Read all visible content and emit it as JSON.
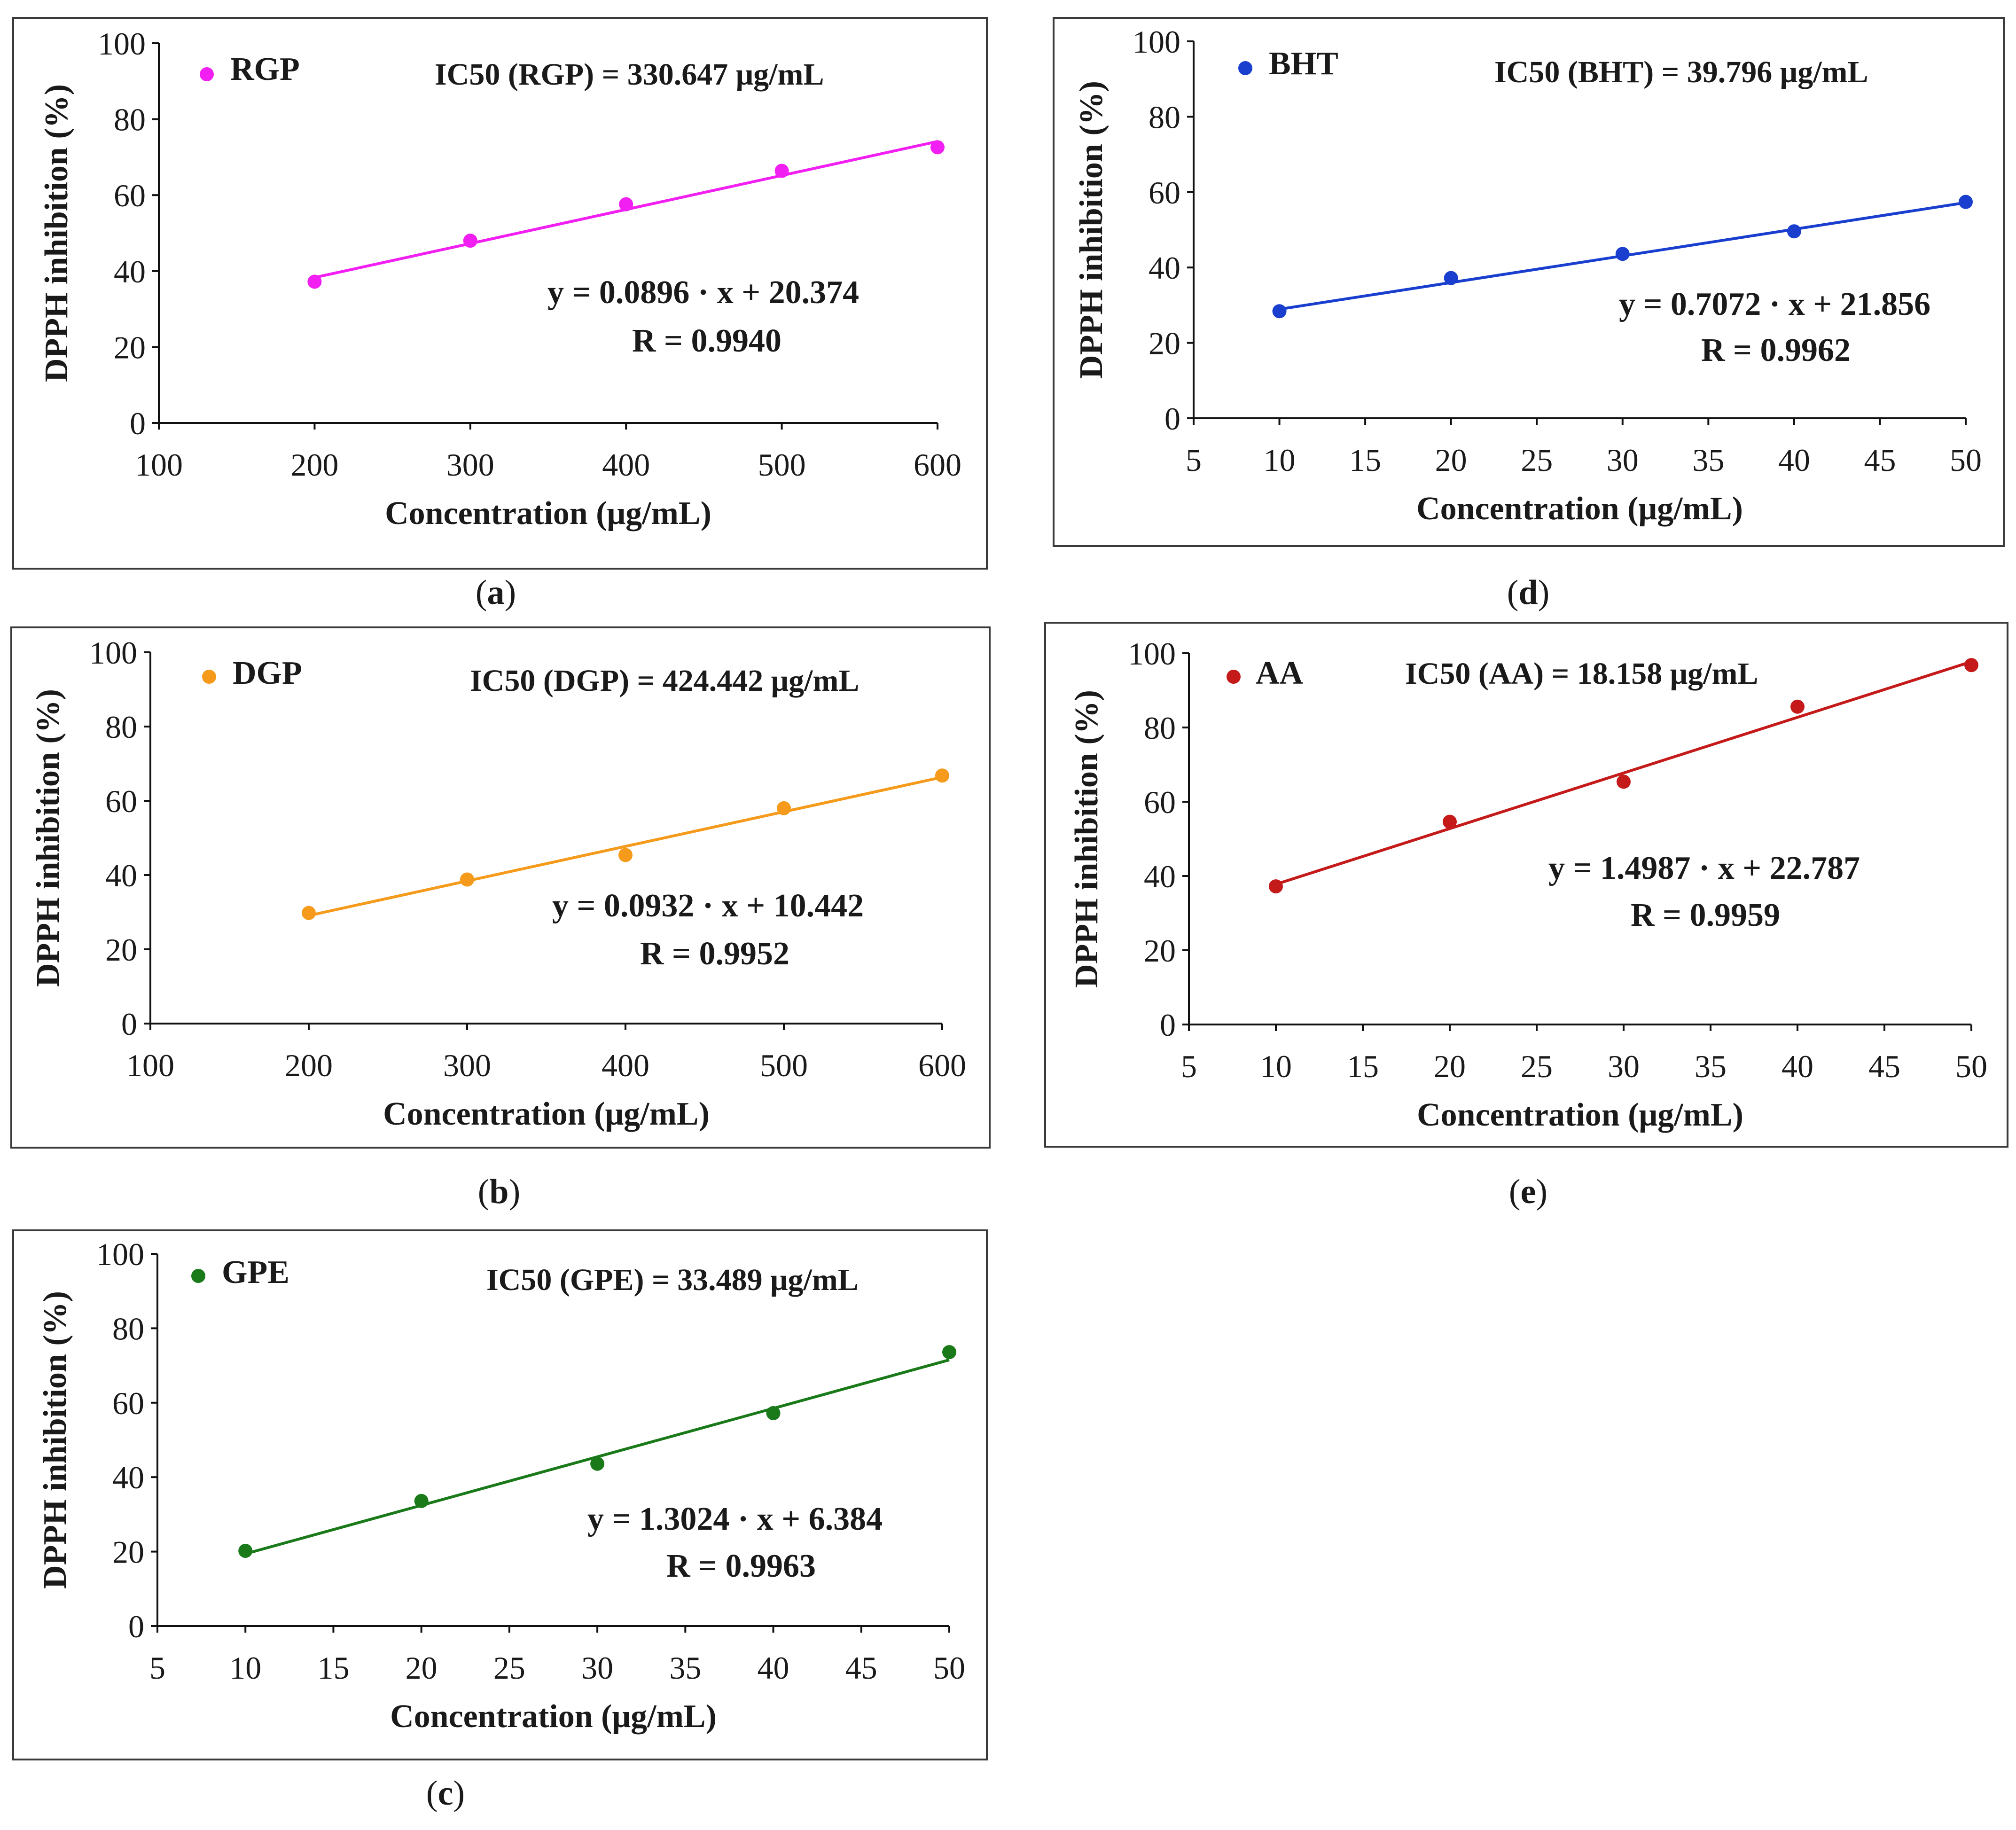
{
  "chart_data": [
    {
      "id": "a",
      "type": "scatter",
      "caption": "a",
      "series_name": "RGP",
      "color": "#f21ff2",
      "x": [
        200,
        300,
        400,
        500,
        600
      ],
      "y": [
        37.2,
        48.0,
        57.6,
        66.4,
        72.6
      ],
      "fit": {
        "slope": 0.0896,
        "intercept": 20.374
      },
      "xlim": [
        100,
        600
      ],
      "xticks": [
        100,
        200,
        300,
        400,
        500,
        600
      ],
      "ylim": [
        0,
        100
      ],
      "yticks": [
        0,
        20,
        40,
        60,
        80,
        100
      ],
      "xlabel": "Concentration (μg/mL)",
      "ylabel": "DPPH inhibition (%)",
      "ic50_text": "IC50 (RGP) = 330.647 μg/mL",
      "equation": "y = 0.0896 · x + 20.374",
      "r_text": "R = 0.9940"
    },
    {
      "id": "d",
      "type": "scatter",
      "caption": "d",
      "series_name": "BHT",
      "color": "#1a3fcf",
      "x": [
        10,
        20,
        30,
        40,
        50
      ],
      "y": [
        28.4,
        37.2,
        43.6,
        49.6,
        57.4
      ],
      "fit": {
        "slope": 0.7072,
        "intercept": 21.856
      },
      "xlim": [
        5,
        50
      ],
      "xticks": [
        5,
        10,
        15,
        20,
        25,
        30,
        35,
        40,
        45,
        50
      ],
      "ylim": [
        0,
        100
      ],
      "yticks": [
        0,
        20,
        40,
        60,
        80,
        100
      ],
      "xlabel": "Concentration (μg/mL)",
      "ylabel": "DPPH inhibition (%)",
      "ic50_text": "IC50 (BHT) = 39.796 μg/mL",
      "equation": "y = 0.7072 · x + 21.856",
      "r_text": "R = 0.9962"
    },
    {
      "id": "b",
      "type": "scatter",
      "caption": "b",
      "series_name": "DGP",
      "color": "#f59a1a",
      "x": [
        200,
        300,
        400,
        500,
        600
      ],
      "y": [
        29.8,
        38.8,
        45.4,
        58.0,
        66.8
      ],
      "fit": {
        "slope": 0.0932,
        "intercept": 10.442
      },
      "xlim": [
        100,
        600
      ],
      "xticks": [
        100,
        200,
        300,
        400,
        500,
        600
      ],
      "ylim": [
        0,
        100
      ],
      "yticks": [
        0,
        20,
        40,
        60,
        80,
        100
      ],
      "xlabel": "Concentration (μg/mL)",
      "ylabel": "DPPH inhibition (%)",
      "ic50_text": "IC50 (DGP) = 424.442 μg/mL",
      "equation": "y = 0.0932 · x + 10.442",
      "r_text": "R = 0.9952"
    },
    {
      "id": "e",
      "type": "scatter",
      "caption": "e",
      "series_name": "AA",
      "color": "#c41a1a",
      "x": [
        10,
        20,
        30,
        40,
        50
      ],
      "y": [
        37.2,
        54.6,
        65.4,
        85.6,
        96.8
      ],
      "fit": {
        "slope": 1.4987,
        "intercept": 22.787
      },
      "xlim": [
        5,
        50
      ],
      "xticks": [
        5,
        10,
        15,
        20,
        25,
        30,
        35,
        40,
        45,
        50
      ],
      "ylim": [
        0,
        100
      ],
      "yticks": [
        0,
        20,
        40,
        60,
        80,
        100
      ],
      "xlabel": "Concentration (μg/mL)",
      "ylabel": "DPPH inhibition (%)",
      "ic50_text": "IC50 (AA) = 18.158 μg/mL",
      "equation": "y = 1.4987 · x + 22.787",
      "r_text": "R = 0.9959"
    },
    {
      "id": "c",
      "type": "scatter",
      "caption": "c",
      "series_name": "GPE",
      "color": "#1a7a1a",
      "x": [
        10,
        20,
        30,
        40,
        50
      ],
      "y": [
        20.2,
        33.6,
        43.6,
        57.2,
        73.6
      ],
      "fit": {
        "slope": 1.3024,
        "intercept": 6.384
      },
      "xlim": [
        5,
        50
      ],
      "xticks": [
        5,
        10,
        15,
        20,
        25,
        30,
        35,
        40,
        45,
        50
      ],
      "ylim": [
        0,
        100
      ],
      "yticks": [
        0,
        20,
        40,
        60,
        80,
        100
      ],
      "xlabel": "Concentration (μg/mL)",
      "ylabel": "DPPH inhibition (%)",
      "ic50_text": "IC50 (GPE) = 33.489 μg/mL",
      "equation": "y = 1.3024 · x + 6.384",
      "r_text": "R = 0.9963"
    }
  ]
}
